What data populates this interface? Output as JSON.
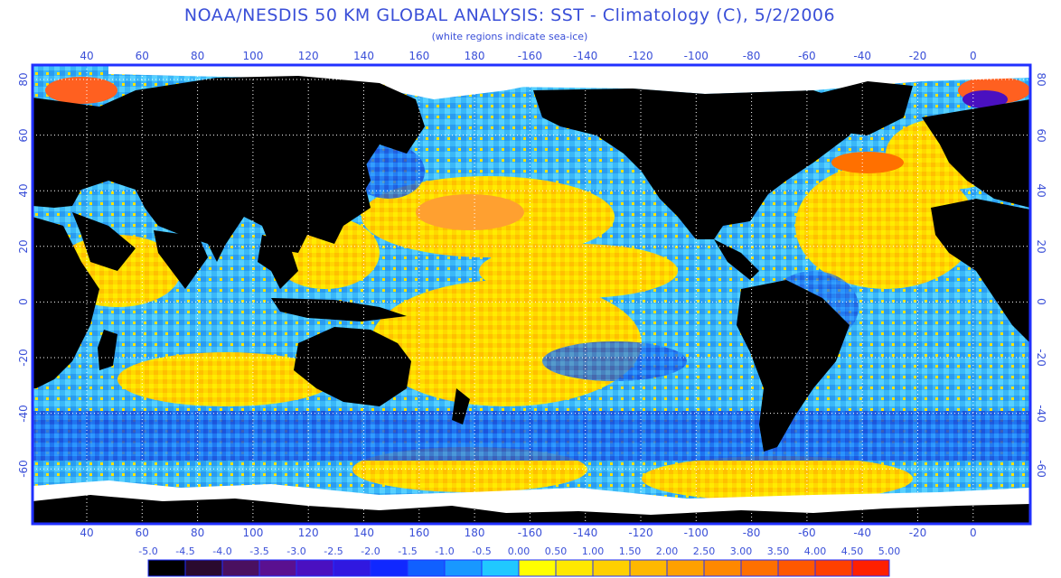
{
  "title": "NOAA/NESDIS 50 KM GLOBAL ANALYSIS: SST - Climatology (C), 5/2/2006",
  "subtitle": "(white regions indicate sea-ice)",
  "colors": {
    "frame": "#2030ff",
    "land": "#000000",
    "ice": "#ffffff",
    "grid": "#ffffff",
    "text": "#3a4fd8"
  },
  "axes": {
    "lon_ticks": [
      "40",
      "60",
      "80",
      "100",
      "120",
      "140",
      "160",
      "180",
      "-160",
      "-140",
      "-120",
      "-100",
      "-80",
      "-60",
      "-40",
      "-20",
      "0"
    ],
    "lat_ticks_left": [
      "80",
      "60",
      "40",
      "20",
      "0",
      "-20",
      "-40",
      "-60"
    ],
    "lat_ticks_right": [
      "80",
      "60",
      "40",
      "20",
      "0",
      "-20",
      "-40",
      "-60"
    ]
  },
  "colorbar": {
    "labels": [
      "-5.0",
      "-4.5",
      "-4.0",
      "-3.5",
      "-3.0",
      "-2.5",
      "-2.0",
      "-1.5",
      "-1.0",
      "-0.5",
      "0.00",
      "0.50",
      "1.00",
      "1.50",
      "2.00",
      "2.50",
      "3.00",
      "3.50",
      "4.00",
      "4.50",
      "5.00"
    ],
    "colors": [
      "#000000",
      "#2a0a2e",
      "#4a1060",
      "#5a1090",
      "#4a10c0",
      "#3018e0",
      "#1028ff",
      "#1060ff",
      "#1898ff",
      "#20c8ff",
      "#ffff00",
      "#ffe800",
      "#ffd000",
      "#ffb800",
      "#ffa000",
      "#ff8800",
      "#ff7000",
      "#ff5800",
      "#ff4000",
      "#ff2000"
    ]
  }
}
